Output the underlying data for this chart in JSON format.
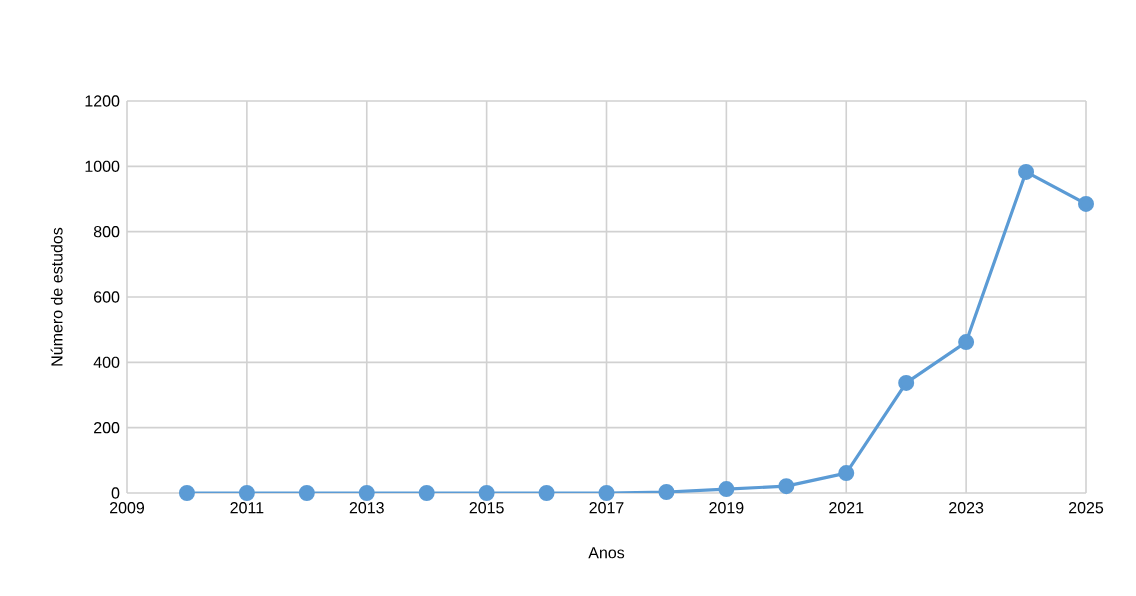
{
  "chart_data": {
    "type": "line",
    "xlabel": "Anos",
    "ylabel": "Número de estudos",
    "x": [
      2010,
      2011,
      2012,
      2013,
      2014,
      2015,
      2016,
      2017,
      2018,
      2019,
      2020,
      2021,
      2022,
      2023,
      2024,
      2025
    ],
    "series": [
      {
        "color": "#5b9bd5",
        "values": [
          0,
          0,
          0,
          0,
          0,
          0,
          0,
          0,
          3,
          12,
          21,
          61,
          337,
          462,
          983,
          885
        ]
      }
    ],
    "xlim": [
      2009,
      2025
    ],
    "xticks": [
      2009,
      2011,
      2013,
      2015,
      2017,
      2019,
      2021,
      2023,
      2025
    ],
    "ylim": [
      0,
      1200
    ],
    "yticks": [
      0,
      200,
      400,
      600,
      800,
      1000,
      1200
    ],
    "grid": true,
    "marker": "circle",
    "line_style": "solid"
  }
}
